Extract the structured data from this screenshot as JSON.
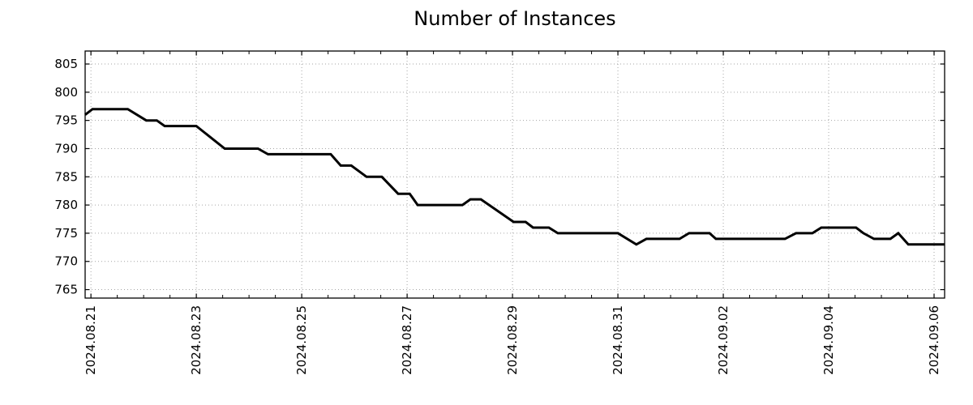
{
  "chart_data": {
    "type": "line",
    "title": "Number of Instances",
    "xlabel": "",
    "ylabel": "",
    "x_tick_labels": [
      "2024.08.21",
      "2024.08.23",
      "2024.08.25",
      "2024.08.27",
      "2024.08.29",
      "2024.08.31",
      "2024.09.02",
      "2024.09.04",
      "2024.09.06"
    ],
    "x_tick_positions_days": [
      0,
      2,
      4,
      6,
      8,
      10,
      12,
      14,
      16
    ],
    "x_minor_tick_interval_days": 0.5,
    "y_ticks": [
      765,
      770,
      775,
      780,
      785,
      790,
      795,
      800,
      805
    ],
    "xlim_days": [
      -0.11,
      16.2
    ],
    "ylim": [
      763.5,
      807.3
    ],
    "grid": true,
    "grid_style": "dotted",
    "legend_position": "none",
    "colors": {
      "line": "#000000",
      "grid": "#a6a6a6",
      "axis": "#000000",
      "text": "#000000",
      "background": "#ffffff"
    },
    "series": [
      {
        "name": "instances",
        "points_days_value": [
          [
            -0.11,
            796
          ],
          [
            0.03,
            797
          ],
          [
            0.7,
            797
          ],
          [
            1.05,
            795
          ],
          [
            1.25,
            795
          ],
          [
            1.4,
            794
          ],
          [
            2.0,
            794
          ],
          [
            2.54,
            790
          ],
          [
            3.17,
            790
          ],
          [
            3.36,
            789
          ],
          [
            4.55,
            789
          ],
          [
            4.74,
            787
          ],
          [
            4.94,
            787
          ],
          [
            5.23,
            785
          ],
          [
            5.52,
            785
          ],
          [
            5.83,
            782
          ],
          [
            6.05,
            782
          ],
          [
            6.2,
            780
          ],
          [
            7.05,
            780
          ],
          [
            7.2,
            781
          ],
          [
            7.4,
            781
          ],
          [
            8.02,
            777
          ],
          [
            8.25,
            777
          ],
          [
            8.39,
            776
          ],
          [
            8.69,
            776
          ],
          [
            8.86,
            775
          ],
          [
            10.0,
            775
          ],
          [
            10.35,
            773
          ],
          [
            10.54,
            774
          ],
          [
            11.17,
            774
          ],
          [
            11.35,
            775
          ],
          [
            11.74,
            775
          ],
          [
            11.86,
            774
          ],
          [
            13.17,
            774
          ],
          [
            13.38,
            775
          ],
          [
            13.69,
            775
          ],
          [
            13.86,
            776
          ],
          [
            14.52,
            776
          ],
          [
            14.66,
            775
          ],
          [
            14.86,
            774
          ],
          [
            15.17,
            774
          ],
          [
            15.32,
            775
          ],
          [
            15.51,
            773
          ],
          [
            16.2,
            773
          ]
        ]
      }
    ]
  }
}
